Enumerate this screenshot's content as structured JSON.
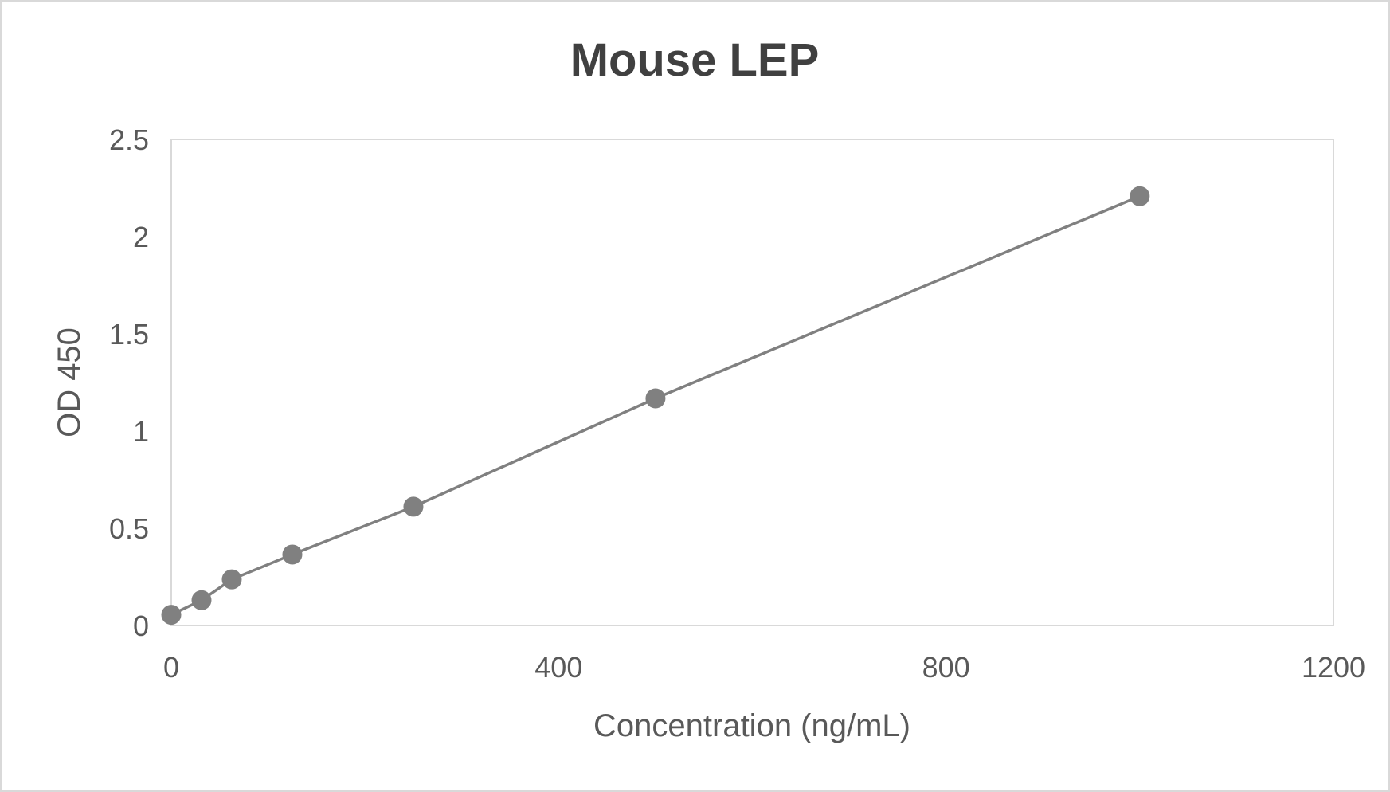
{
  "chart_data": {
    "type": "line",
    "title": "Mouse LEP",
    "xlabel": "Concentration (ng/mL)",
    "ylabel": "OD 450",
    "xlim": [
      0,
      1200
    ],
    "ylim": [
      0,
      2.5
    ],
    "x_ticks": [
      "0",
      "400",
      "800",
      "1200"
    ],
    "y_ticks": [
      "0",
      "0.5",
      "1",
      "1.5",
      "2",
      "2.5"
    ],
    "x_tick_values": [
      0,
      400,
      800,
      1200
    ],
    "y_tick_values": [
      0,
      0.5,
      1,
      1.5,
      2,
      2.5
    ],
    "grid": false,
    "legend": "none",
    "markers": true,
    "series": [
      {
        "x": [
          0,
          31.25,
          62.5,
          125,
          250,
          500,
          1000
        ],
        "y": [
          0.055,
          0.13,
          0.237,
          0.365,
          0.611,
          1.168,
          2.208
        ],
        "color": "#808080"
      }
    ]
  }
}
